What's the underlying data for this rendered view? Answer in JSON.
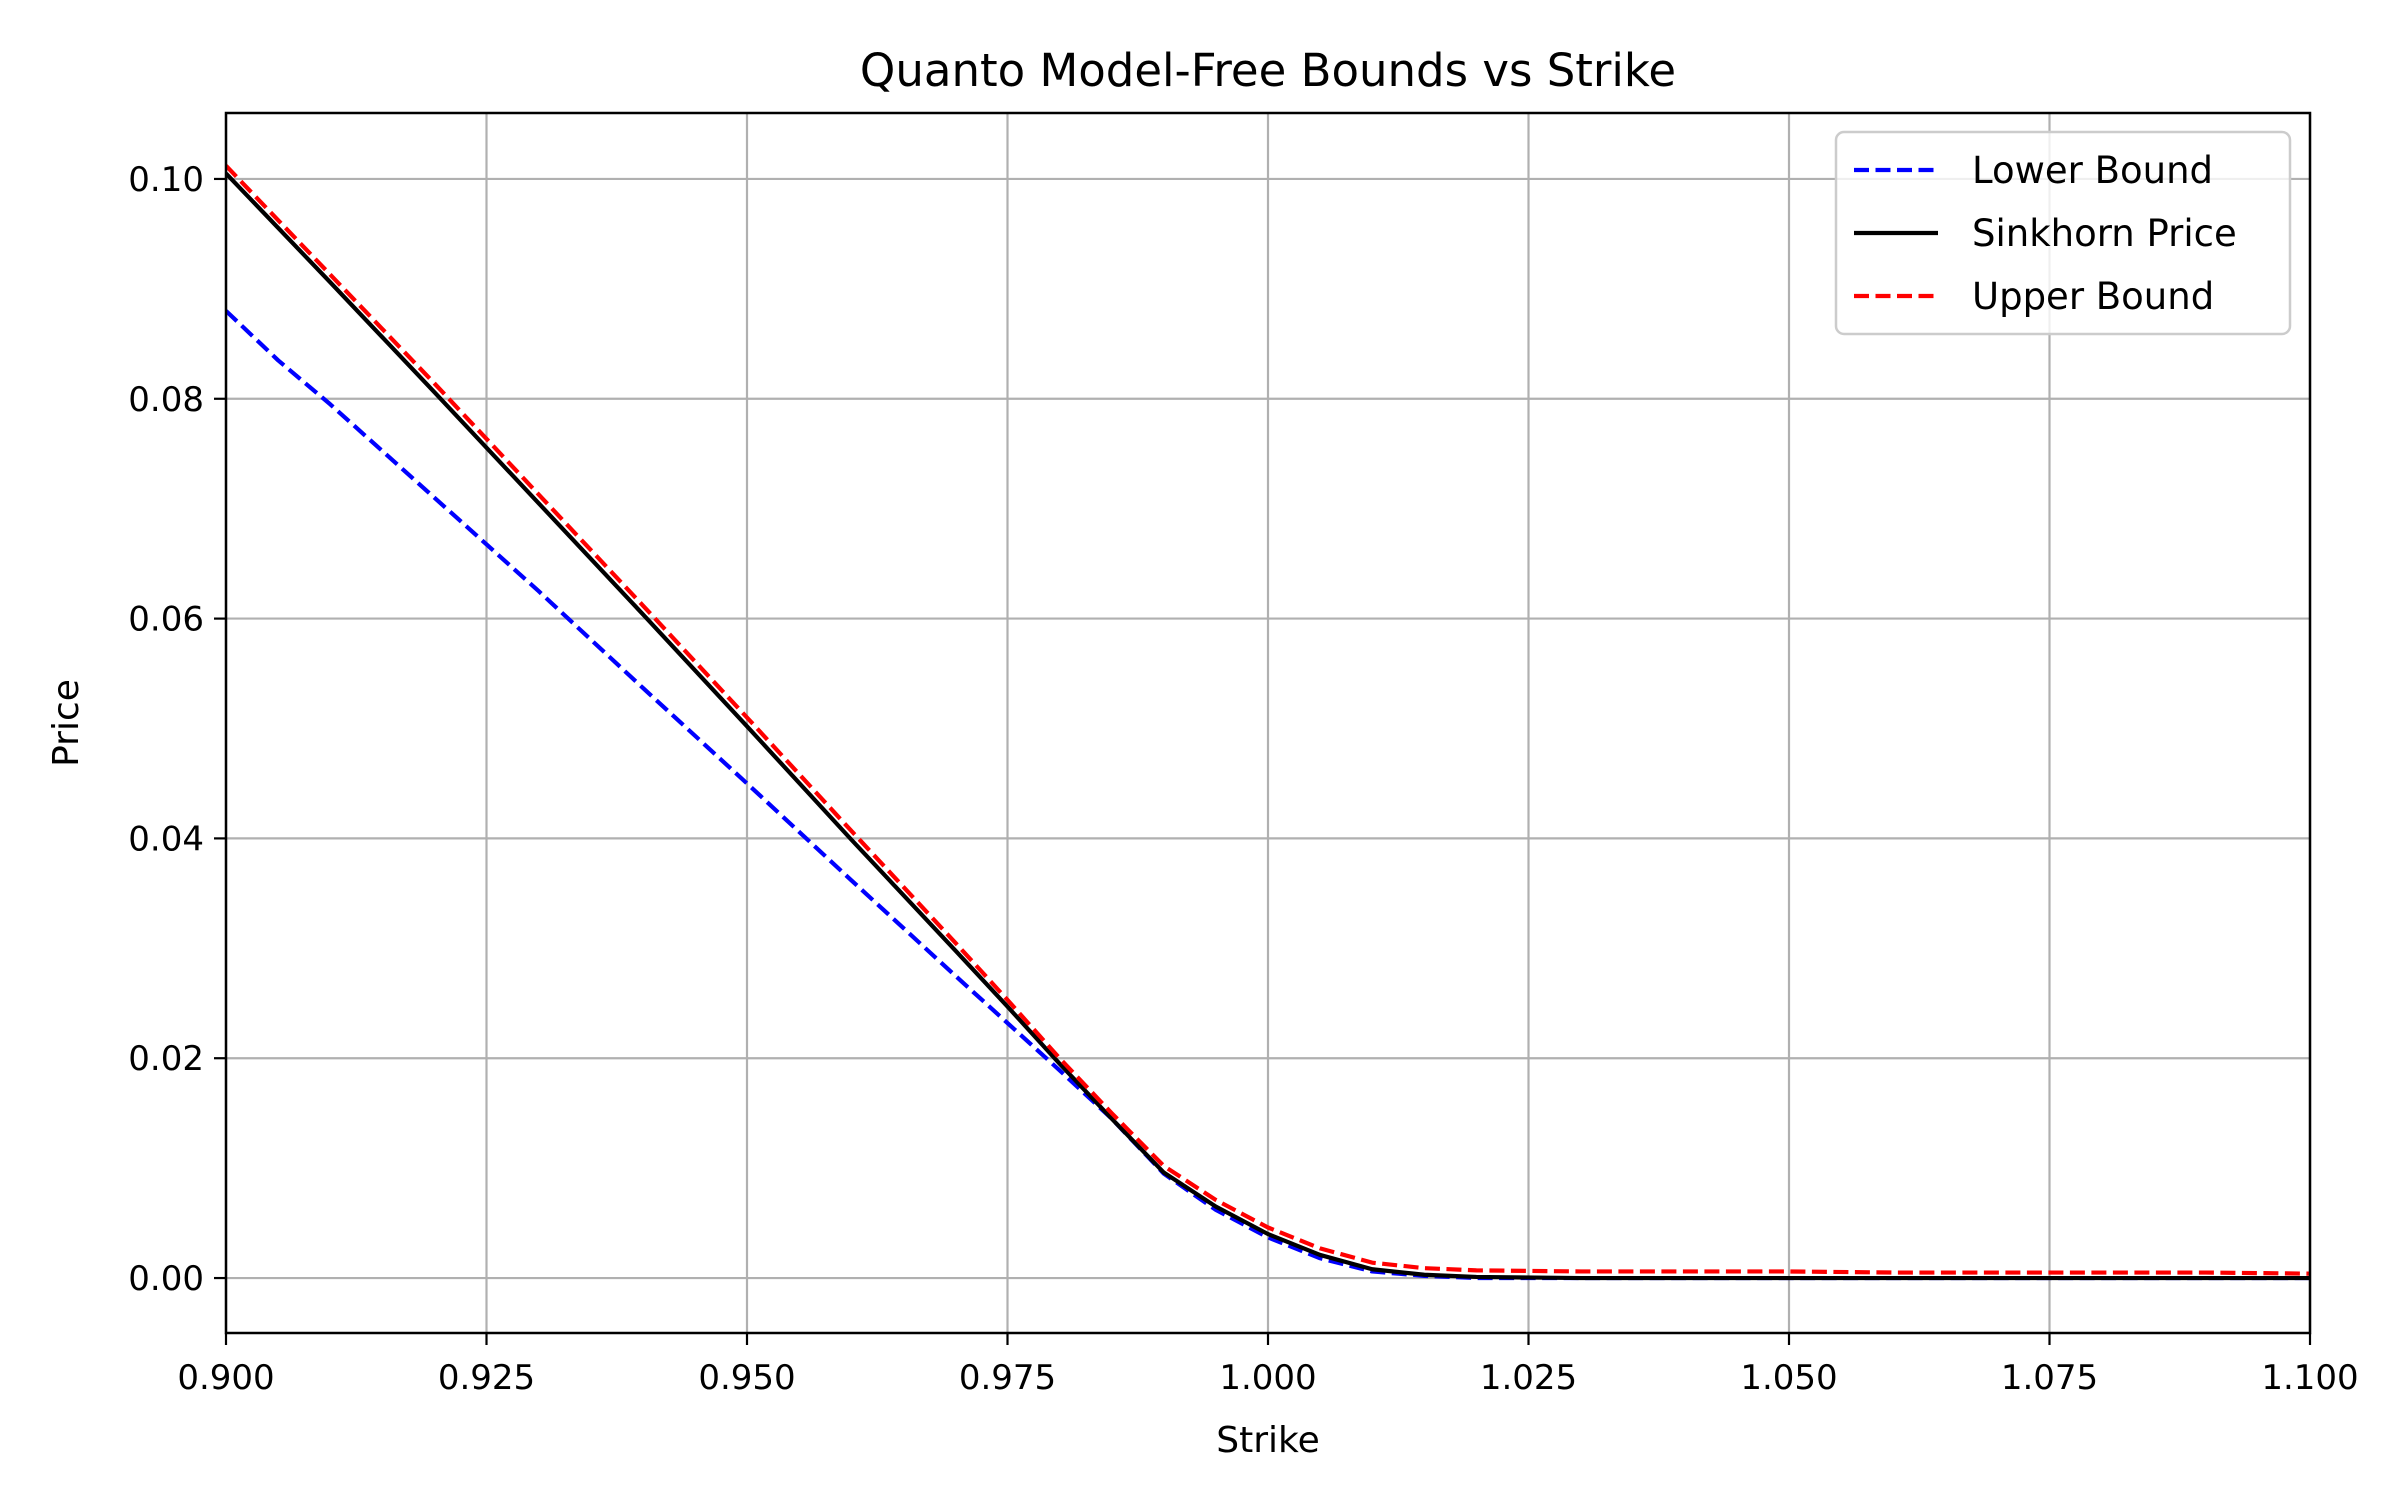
{
  "chart_data": {
    "type": "line",
    "title": "Quanto Model-Free Bounds vs Strike",
    "xlabel": "Strike",
    "ylabel": "Price",
    "xlim": [
      0.9,
      1.1
    ],
    "ylim": [
      -0.005,
      0.106
    ],
    "xticks": [
      0.9,
      0.925,
      0.95,
      0.975,
      1.0,
      1.025,
      1.05,
      1.075,
      1.1
    ],
    "xtick_labels": [
      "0.900",
      "0.925",
      "0.950",
      "0.975",
      "1.000",
      "1.025",
      "1.050",
      "1.075",
      "1.100"
    ],
    "yticks": [
      0.0,
      0.02,
      0.04,
      0.06,
      0.08,
      0.1
    ],
    "ytick_labels": [
      "0.00",
      "0.02",
      "0.04",
      "0.06",
      "0.08",
      "0.10"
    ],
    "grid": true,
    "legend_position": "top-right",
    "series": [
      {
        "name": "Lower Bound",
        "color": "#0000ff",
        "style": "dashed",
        "x": [
          0.9,
          0.905,
          0.91,
          0.92,
          0.93,
          0.94,
          0.95,
          0.96,
          0.97,
          0.975,
          0.98,
          0.985,
          0.99,
          0.995,
          1.0,
          1.005,
          1.01,
          1.015,
          1.02,
          1.03,
          1.04,
          1.05,
          1.06,
          1.07,
          1.08,
          1.09,
          1.1
        ],
        "y": [
          0.088,
          0.0835,
          0.0795,
          0.071,
          0.0625,
          0.0537,
          0.045,
          0.0362,
          0.0275,
          0.0232,
          0.0189,
          0.0145,
          0.0095,
          0.0062,
          0.0037,
          0.0018,
          0.0006,
          0.0002,
          0.0,
          0.0,
          0.0,
          0.0,
          0.0,
          0.0,
          0.0,
          0.0,
          0.0
        ]
      },
      {
        "name": "Sinkhorn Price",
        "color": "#000000",
        "style": "solid",
        "x": [
          0.9,
          0.91,
          0.92,
          0.93,
          0.94,
          0.95,
          0.96,
          0.97,
          0.975,
          0.98,
          0.985,
          0.99,
          0.995,
          1.0,
          1.005,
          1.01,
          1.015,
          1.02,
          1.03,
          1.04,
          1.05,
          1.06,
          1.07,
          1.08,
          1.09,
          1.1
        ],
        "y": [
          0.1005,
          0.0906,
          0.0806,
          0.0705,
          0.0604,
          0.0502,
          0.0399,
          0.0298,
          0.0247,
          0.0195,
          0.0145,
          0.0096,
          0.0065,
          0.004,
          0.0021,
          0.0008,
          0.0003,
          0.0001,
          0.0,
          0.0,
          0.0,
          0.0,
          0.0,
          0.0,
          0.0,
          0.0
        ]
      },
      {
        "name": "Upper Bound",
        "color": "#ff0000",
        "style": "dashed",
        "x": [
          0.9,
          0.91,
          0.92,
          0.93,
          0.94,
          0.95,
          0.96,
          0.97,
          0.975,
          0.98,
          0.985,
          0.99,
          0.995,
          1.0,
          1.005,
          1.01,
          1.015,
          1.02,
          1.03,
          1.04,
          1.05,
          1.06,
          1.07,
          1.08,
          1.09,
          1.1
        ],
        "y": [
          0.1012,
          0.0913,
          0.0814,
          0.0713,
          0.0612,
          0.051,
          0.0407,
          0.0305,
          0.0253,
          0.02,
          0.015,
          0.0102,
          0.0071,
          0.0046,
          0.0027,
          0.0014,
          0.0009,
          0.0007,
          0.0006,
          0.0006,
          0.0006,
          0.0005,
          0.0005,
          0.0005,
          0.0005,
          0.0004
        ]
      }
    ]
  }
}
